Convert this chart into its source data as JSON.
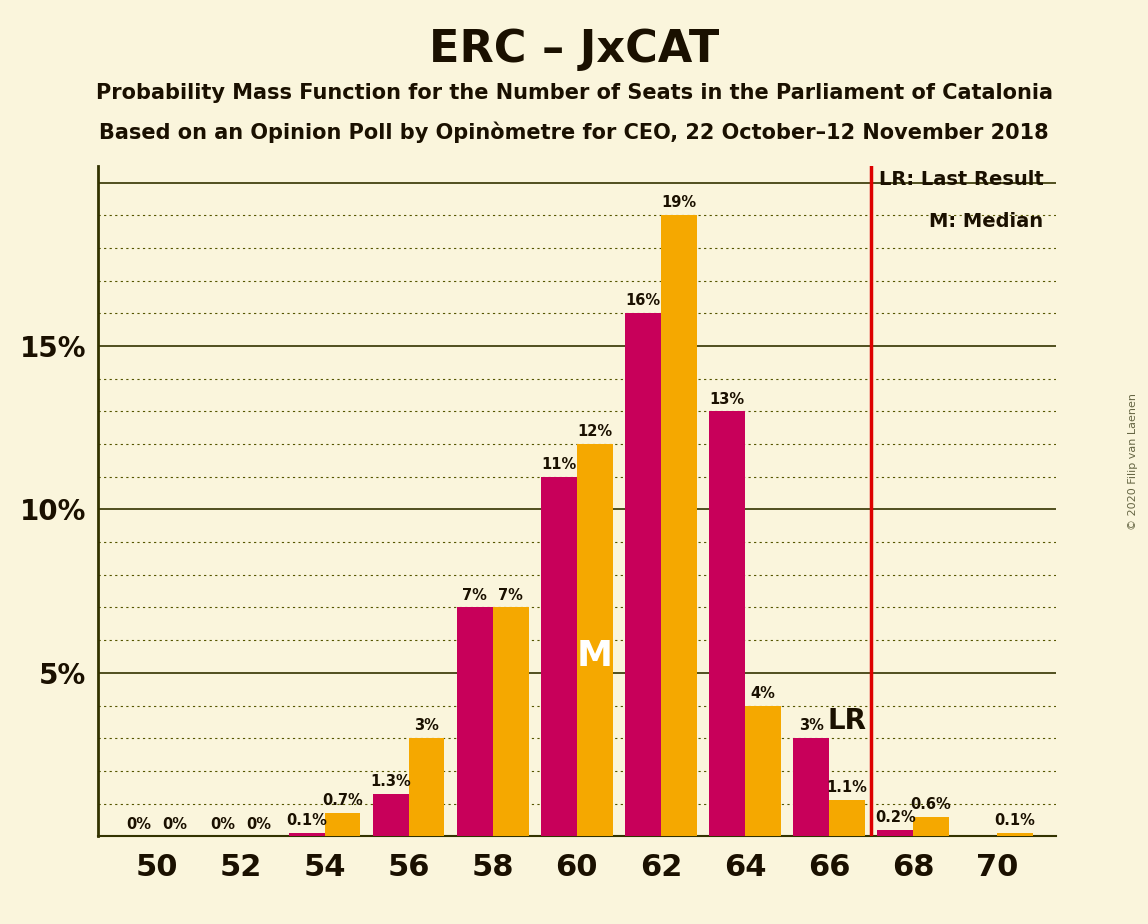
{
  "title": "ERC – JxCAT",
  "subtitle1": "Probability Mass Function for the Number of Seats in the Parliament of Catalonia",
  "subtitle2": "Based on an Opinion Poll by Opinòmetre for CEO, 22 October–12 November 2018",
  "copyright": "© 2020 Filip van Laenen",
  "erc_color": "#C8005A",
  "jxcat_color": "#F5A800",
  "background_color": "#FAF5DC",
  "lr_line_x": 67,
  "bar_width": 0.85,
  "xlim": [
    48.6,
    71.4
  ],
  "ylim": [
    0,
    20.5
  ],
  "xticks": [
    50,
    52,
    54,
    56,
    58,
    60,
    62,
    64,
    66,
    68,
    70
  ],
  "ytick_major": [
    5,
    10,
    15
  ],
  "label_fontsize": 10.5,
  "seats": [
    50,
    52,
    54,
    56,
    58,
    60,
    62,
    64,
    66,
    68,
    70
  ],
  "erc_data": [
    0.0,
    0.0,
    0.1,
    1.3,
    7.0,
    11.0,
    16.0,
    13.0,
    3.0,
    0.2,
    0.0
  ],
  "jxcat_data": [
    0.0,
    0.0,
    0.7,
    3.0,
    7.0,
    12.0,
    19.0,
    4.0,
    1.1,
    0.6,
    0.1
  ],
  "median_seat": 60,
  "median_label": "M",
  "lr_label": "LR",
  "legend_lr_text": "LR: Last Result",
  "legend_m_text": "M: Median"
}
